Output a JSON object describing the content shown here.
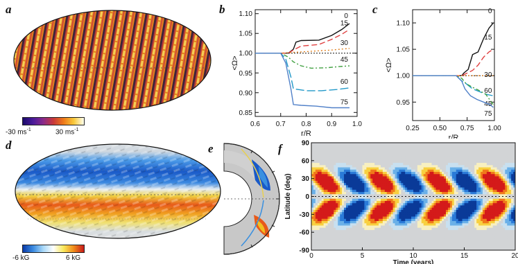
{
  "panels": {
    "a": {
      "letter": "a"
    },
    "b": {
      "letter": "b"
    },
    "c": {
      "letter": "c"
    },
    "d": {
      "letter": "d"
    },
    "e": {
      "letter": "e"
    },
    "f": {
      "letter": "f"
    }
  },
  "colorbar_a": {
    "min_label": "-30 ms",
    "min_sup": "-1",
    "max_label": "30 ms",
    "max_sup": "-1",
    "colors": [
      "#1a0a6a",
      "#4a1a9a",
      "#8a2a8a",
      "#c8383a",
      "#ee7a1a",
      "#f8c83a",
      "#ffffee"
    ]
  },
  "colorbar_d": {
    "min_label": "-6 kG",
    "max_label": "6 kG",
    "colors": [
      "#0a3aa8",
      "#3a8ae0",
      "#a8d8f8",
      "#ffffff",
      "#f8e85a",
      "#f08a1a",
      "#c81a1a"
    ]
  },
  "chart_data": [
    {
      "panel": "b",
      "type": "line",
      "ylabel": "<Ω>",
      "xlabel": "r/R",
      "xlim": [
        0.6,
        1.0
      ],
      "ylim": [
        0.84,
        1.11
      ],
      "xticks": [
        "0.6",
        "0.7",
        "0.8",
        "0.9",
        "1.0"
      ],
      "yticks": [
        "0.85",
        "0.90",
        "0.95",
        "1.00",
        "1.05",
        "1.10"
      ],
      "series": [
        {
          "name": "0",
          "color": "#111111",
          "dash": "",
          "x": [
            0.6,
            0.7,
            0.73,
            0.75,
            0.76,
            0.78,
            0.85,
            0.9,
            0.94,
            0.97
          ],
          "y": [
            1.0,
            1.0,
            1.0,
            1.01,
            1.028,
            1.032,
            1.033,
            1.045,
            1.06,
            1.075
          ]
        },
        {
          "name": "15",
          "color": "#e04040",
          "dash": "8,4",
          "x": [
            0.6,
            0.7,
            0.73,
            0.75,
            0.78,
            0.85,
            0.9,
            0.94,
            0.97
          ],
          "y": [
            1.0,
            1.0,
            1.0,
            1.008,
            1.018,
            1.022,
            1.035,
            1.048,
            1.06
          ]
        },
        {
          "name": "30",
          "color": "#e08020",
          "dash": "2,3",
          "x": [
            0.6,
            0.7,
            0.75,
            0.8,
            0.85,
            0.9,
            0.95,
            0.97
          ],
          "y": [
            1.0,
            1.0,
            1.002,
            1.004,
            1.006,
            1.008,
            1.011,
            1.012
          ]
        },
        {
          "name": "45",
          "color": "#40a040",
          "dash": "6,3,2,3",
          "x": [
            0.6,
            0.7,
            0.73,
            0.75,
            0.78,
            0.82,
            0.88,
            0.93,
            0.97
          ],
          "y": [
            1.0,
            1.0,
            0.99,
            0.978,
            0.968,
            0.962,
            0.963,
            0.966,
            0.968
          ]
        },
        {
          "name": "60",
          "color": "#2098c8",
          "dash": "12,4",
          "x": [
            0.6,
            0.7,
            0.72,
            0.74,
            0.75,
            0.8,
            0.86,
            0.92,
            0.97
          ],
          "y": [
            1.0,
            1.0,
            0.985,
            0.94,
            0.91,
            0.905,
            0.905,
            0.908,
            0.912
          ]
        },
        {
          "name": "75",
          "color": "#5080c8",
          "dash": "",
          "x": [
            0.6,
            0.7,
            0.72,
            0.74,
            0.75,
            0.78,
            0.84,
            0.9,
            0.97
          ],
          "y": [
            1.0,
            1.0,
            0.975,
            0.91,
            0.87,
            0.868,
            0.866,
            0.862,
            0.862
          ]
        }
      ],
      "reference_line": 1.0
    },
    {
      "panel": "c",
      "type": "line",
      "ylabel": "<Ω>",
      "xlabel": "r/R",
      "xlim": [
        0.25,
        1.0
      ],
      "ylim": [
        0.915,
        1.125
      ],
      "xticks": [
        "0.25",
        "0.50",
        "0.75",
        "1.00"
      ],
      "yticks": [
        "0.95",
        "1.00",
        "1.05",
        "1.10"
      ],
      "series": [
        {
          "name": "0",
          "color": "#111111",
          "dash": "",
          "x": [
            0.25,
            0.65,
            0.7,
            0.72,
            0.76,
            0.8,
            0.85,
            0.9,
            0.95,
            0.99
          ],
          "y": [
            1.0,
            1.0,
            1.0,
            1.005,
            1.012,
            1.04,
            1.045,
            1.07,
            1.09,
            1.1
          ]
        },
        {
          "name": "15",
          "color": "#e04040",
          "dash": "8,4",
          "x": [
            0.25,
            0.65,
            0.7,
            0.74,
            0.8,
            0.85,
            0.9,
            0.95,
            0.99
          ],
          "y": [
            1.0,
            1.0,
            1.0,
            1.004,
            1.01,
            1.02,
            1.035,
            1.045,
            1.05
          ]
        },
        {
          "name": "30",
          "color": "#e08020",
          "dash": "2,3",
          "x": [
            0.25,
            0.65,
            0.7,
            0.8,
            0.9,
            0.99
          ],
          "y": [
            1.0,
            1.0,
            1.0,
            1.0,
            1.0,
            1.0
          ]
        },
        {
          "name": "60",
          "color": "#2098c8",
          "dash": "12,4",
          "x": [
            0.25,
            0.65,
            0.7,
            0.74,
            0.8,
            0.86,
            0.92,
            0.99
          ],
          "y": [
            1.0,
            1.0,
            0.99,
            0.985,
            0.975,
            0.97,
            0.965,
            0.962
          ]
        },
        {
          "name": "45",
          "color": "#40a040",
          "dash": "6,3,2,3",
          "x": [
            0.25,
            0.65,
            0.7,
            0.74,
            0.8,
            0.86,
            0.92,
            0.99
          ],
          "y": [
            1.0,
            1.0,
            0.995,
            0.985,
            0.978,
            0.972,
            0.965,
            0.945
          ]
        },
        {
          "name": "75",
          "color": "#5080c8",
          "dash": "",
          "x": [
            0.25,
            0.65,
            0.7,
            0.73,
            0.78,
            0.84,
            0.9,
            0.96,
            0.99
          ],
          "y": [
            1.0,
            1.0,
            0.99,
            0.975,
            0.962,
            0.955,
            0.95,
            0.945,
            0.94
          ]
        }
      ],
      "reference_line": 1.0
    },
    {
      "panel": "f",
      "type": "heatmap",
      "xlabel": "Time (years)",
      "ylabel": "Latitude (deg)",
      "xlim": [
        0,
        20
      ],
      "ylim": [
        -90,
        90
      ],
      "xticks": [
        "0",
        "5",
        "10",
        "15",
        "20"
      ],
      "yticks": [
        "90",
        "60",
        "30",
        "0",
        "-30",
        "-60",
        "-90"
      ]
    }
  ]
}
